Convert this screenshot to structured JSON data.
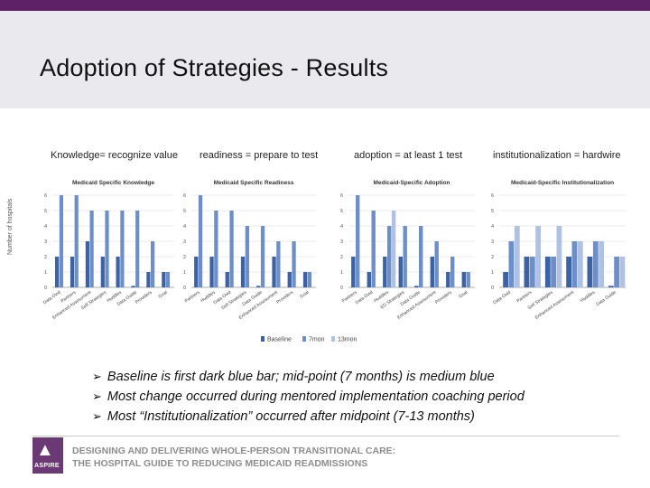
{
  "slide": {
    "title": "Adoption of Strategies - Results",
    "chart_labels": [
      "Knowledge= recognize value",
      "readiness = prepare to test",
      "adoption = at least 1 test",
      "institutionalization = hardwire"
    ],
    "y_axis_label": "Number of hospitals",
    "bullets": [
      "Baseline is first dark blue bar; mid-point (7 months) is medium blue",
      "Most change occurred during mentored implementation coaching period",
      "Most “Institutionalization” occurred after midpoint (7-13 months)"
    ],
    "bullet_glyph": "➢",
    "footer": {
      "logo_mark": "▲",
      "logo_text": "ASPIRE",
      "line1": "DESIGNING AND DELIVERING WHOLE-PERSON TRANSITIONAL CARE:",
      "line2": "THE HOSPITAL GUIDE TO REDUCING MEDICAID READMISSIONS"
    }
  },
  "colors": {
    "brand_purple": "#5e2167",
    "header_bg": "#e9e9ee",
    "baseline": "#3b62a5",
    "m7": "#6d8fc9",
    "m13": "#b0c2e3"
  },
  "chart_data": [
    {
      "type": "bar",
      "title": "Medicaid Specific Knowledge",
      "ylim": [
        0,
        6
      ],
      "yticks": [
        "0",
        "1",
        "2",
        "3",
        "4",
        "5",
        "6"
      ],
      "categories": [
        "Data Ovid",
        "Partners",
        "Enhanced Assessment",
        "Self Strategies",
        "Huddles",
        "Data Guide",
        "Providers",
        "Goal"
      ],
      "series": [
        {
          "name": "Baseline",
          "values": [
            2,
            2,
            3,
            2,
            2,
            0.1,
            1,
            1
          ]
        },
        {
          "name": "7mon",
          "values": [
            6,
            6,
            5,
            5,
            5,
            5,
            3,
            1
          ]
        }
      ],
      "legend": [
        "Baseline",
        "7mon",
        "13mon"
      ]
    },
    {
      "type": "bar",
      "title": "Medicaid Specific Readiness",
      "ylim": [
        0,
        6
      ],
      "yticks": [
        "0",
        "1",
        "2",
        "3",
        "4",
        "5",
        "6"
      ],
      "categories": [
        "Partners",
        "Huddles",
        "Data Ovid",
        "Self Strategies",
        "Data Guide",
        "Enhanced Assessment",
        "Providers",
        "Goal"
      ],
      "series": [
        {
          "name": "Baseline",
          "values": [
            2,
            2,
            1,
            2,
            0.1,
            2,
            1,
            1
          ]
        },
        {
          "name": "7mon",
          "values": [
            6,
            5,
            5,
            4,
            4,
            3,
            3,
            1
          ]
        }
      ]
    },
    {
      "type": "bar",
      "title": "Medicaid-Specific Adoption",
      "ylim": [
        0,
        6
      ],
      "yticks": [
        "0",
        "1",
        "2",
        "3",
        "4",
        "5",
        "6"
      ],
      "categories": [
        "Partners",
        "Data Ovid",
        "Huddles",
        "ED Strategies",
        "Data Guide",
        "Enhanced Assessment",
        "Providers",
        "Goal"
      ],
      "series": [
        {
          "name": "Baseline",
          "values": [
            2,
            1,
            2,
            2,
            0.1,
            2,
            1,
            1
          ]
        },
        {
          "name": "7mon",
          "values": [
            6,
            5,
            4,
            4,
            4,
            3,
            2,
            1
          ]
        },
        {
          "name": "13mon",
          "values": [
            null,
            null,
            5,
            null,
            null,
            null,
            null,
            null
          ]
        }
      ]
    },
    {
      "type": "bar",
      "title": "Medicaid-Specific Institutionalization",
      "ylim": [
        0,
        6
      ],
      "yticks": [
        "0",
        "1",
        "2",
        "3",
        "4",
        "5",
        "6"
      ],
      "categories": [
        "Data Ovid",
        "Partners",
        "Self Strategies",
        "Enhanced Assessment",
        "Huddles",
        "Data Guide"
      ],
      "series": [
        {
          "name": "Baseline",
          "values": [
            1,
            2,
            2,
            2,
            2,
            0.1
          ]
        },
        {
          "name": "7mon",
          "values": [
            3,
            2,
            2,
            3,
            3,
            2
          ]
        },
        {
          "name": "13mon",
          "values": [
            4,
            4,
            4,
            3,
            3,
            2
          ]
        }
      ]
    }
  ]
}
